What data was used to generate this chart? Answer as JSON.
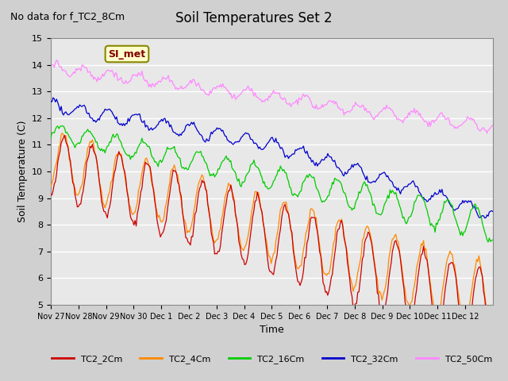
{
  "title": "Soil Temperatures Set 2",
  "subtitle": "No data for f_TC2_8Cm",
  "xlabel": "Time",
  "ylabel": "Soil Temperature (C)",
  "ylim": [
    5.0,
    15.0
  ],
  "yticks": [
    5.0,
    6.0,
    7.0,
    8.0,
    9.0,
    10.0,
    11.0,
    12.0,
    13.0,
    14.0,
    15.0
  ],
  "date_labels": [
    "Nov 27",
    "Nov 28",
    "Nov 29",
    "Nov 30",
    "Dec 1",
    "Dec 2",
    "Dec 3",
    "Dec 4",
    "Dec 5",
    "Dec 6",
    "Dec 7",
    "Dec 8",
    "Dec 9",
    "Dec 10",
    "Dec 11",
    "Dec 12"
  ],
  "colors": {
    "TC2_2Cm": "#cc0000",
    "TC2_4Cm": "#ff8800",
    "TC2_16Cm": "#00cc00",
    "TC2_32Cm": "#0000cc",
    "TC2_50Cm": "#ff88ff"
  },
  "legend_label": "SI_met",
  "plot_bg": "#e8e8e8",
  "grid_color": "#ffffff",
  "fig_bg": "#d0d0d0"
}
